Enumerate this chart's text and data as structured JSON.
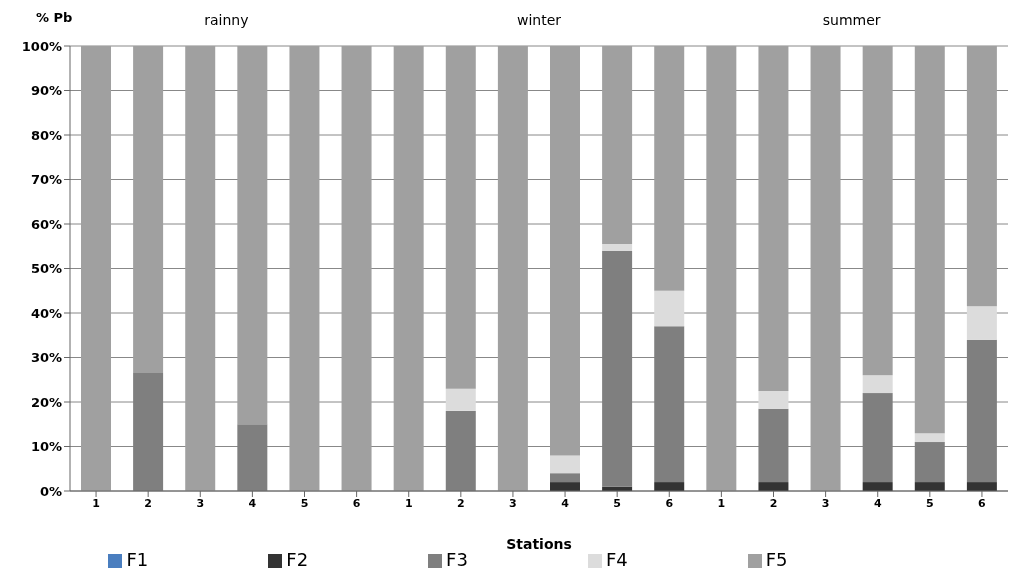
{
  "chart_data": {
    "type": "bar",
    "stacked": true,
    "ylabel": "% Pb",
    "xlabel": "Stations",
    "annotations": [
      "rainny",
      "winter",
      "summer"
    ],
    "categories": [
      "1",
      "2",
      "3",
      "4",
      "5",
      "6",
      "1",
      "2",
      "3",
      "4",
      "5",
      "6",
      "1",
      "2",
      "3",
      "4",
      "5",
      "6"
    ],
    "series": [
      {
        "name": "F1",
        "color": "#4a7ebf",
        "values": [
          0,
          0,
          0,
          0,
          0,
          0,
          0,
          0,
          0,
          0,
          0,
          0,
          0,
          0,
          0,
          0,
          0,
          0
        ]
      },
      {
        "name": "F2",
        "color": "#333333",
        "values": [
          0,
          0,
          0,
          0,
          0,
          0,
          0,
          0,
          0,
          2,
          1,
          2,
          0,
          2,
          0,
          2,
          2,
          2
        ]
      },
      {
        "name": "F3",
        "color": "#7f7f7f",
        "values": [
          0,
          26.5,
          0,
          15,
          0,
          0,
          0,
          18,
          0,
          2,
          53,
          35,
          0,
          16.5,
          0,
          20,
          9,
          32
        ]
      },
      {
        "name": "F4",
        "color": "#dcdcdc",
        "values": [
          0,
          0,
          0,
          0,
          0,
          0,
          0,
          5,
          0,
          4,
          1.5,
          8,
          0,
          4,
          0,
          4,
          2,
          7.5
        ]
      },
      {
        "name": "F5",
        "color": "#a0a0a0",
        "values": [
          100,
          73.5,
          100,
          85,
          100,
          100,
          100,
          77,
          100,
          92,
          44.5,
          55,
          100,
          77.5,
          100,
          74,
          87,
          58.5
        ]
      }
    ],
    "ylim": [
      0,
      100
    ],
    "yticks": [
      {
        "value": 0,
        "label": "0%"
      },
      {
        "value": 10,
        "label": "10%"
      },
      {
        "value": 20,
        "label": "20%"
      },
      {
        "value": 30,
        "label": "30%"
      },
      {
        "value": 40,
        "label": "40%"
      },
      {
        "value": 50,
        "label": "50%"
      },
      {
        "value": 60,
        "label": "60%"
      },
      {
        "value": 70,
        "label": "70%"
      },
      {
        "value": 80,
        "label": "80%"
      },
      {
        "value": 90,
        "label": "90%"
      },
      {
        "value": 100,
        "label": "100%"
      }
    ],
    "grid": "y",
    "legend": "bottom"
  }
}
